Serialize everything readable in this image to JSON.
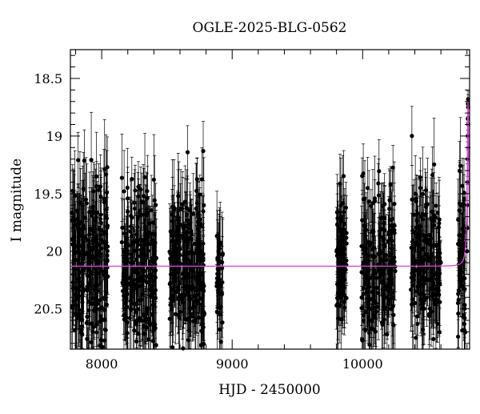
{
  "chart_data": {
    "type": "scatter",
    "title": "OGLE-2025-BLG-0562",
    "xlabel": "HJD - 2450000",
    "ylabel": "I magnitude",
    "xlim": [
      7760,
      10820
    ],
    "ylim": [
      20.85,
      18.25
    ],
    "y_inverted": true,
    "grid": false,
    "legend": "none",
    "x_ticks": [
      8000,
      9000,
      10000
    ],
    "x_tick_labels": [
      "8000",
      "9000",
      "10000"
    ],
    "y_ticks": [
      18.5,
      19,
      19.5,
      20,
      20.5
    ],
    "y_tick_labels": [
      "18.5",
      "19",
      "19.5",
      "20",
      "20.5"
    ],
    "colors": {
      "points": "#000000",
      "model": "#e040e0"
    },
    "series": [
      {
        "kind": "points",
        "seasons": [
          {
            "x_range": [
              7770,
              8050
            ],
            "mean_mag": 20.13,
            "scatter": 0.38,
            "err": 0.3,
            "count": 260
          },
          {
            "x_range": [
              8150,
              8420
            ],
            "mean_mag": 20.13,
            "scatter": 0.36,
            "err": 0.28,
            "count": 240
          },
          {
            "x_range": [
              8520,
              8790
            ],
            "mean_mag": 20.13,
            "scatter": 0.36,
            "err": 0.28,
            "count": 250
          },
          {
            "x_range": [
              8880,
              8930
            ],
            "mean_mag": 20.13,
            "scatter": 0.32,
            "err": 0.3,
            "count": 40
          },
          {
            "x_range": [
              9800,
              9880
            ],
            "mean_mag": 20.13,
            "scatter": 0.32,
            "err": 0.28,
            "count": 70
          },
          {
            "x_range": [
              9990,
              10250
            ],
            "mean_mag": 20.13,
            "scatter": 0.34,
            "err": 0.28,
            "count": 200
          },
          {
            "x_range": [
              10370,
              10600
            ],
            "mean_mag": 20.13,
            "scatter": 0.34,
            "err": 0.28,
            "count": 180
          },
          {
            "x_range": [
              10730,
              10790
            ],
            "mean_mag": 20.13,
            "scatter": 0.34,
            "err": 0.28,
            "count": 60
          }
        ],
        "peak_points": [
          {
            "x": 10800,
            "y": 20.0,
            "err": 0.2
          },
          {
            "x": 10801,
            "y": 19.8,
            "err": 0.2
          },
          {
            "x": 10802,
            "y": 19.6,
            "err": 0.18
          },
          {
            "x": 10803,
            "y": 19.4,
            "err": 0.16
          },
          {
            "x": 10804,
            "y": 19.2,
            "err": 0.15
          },
          {
            "x": 10805,
            "y": 19.0,
            "err": 0.12
          },
          {
            "x": 10806,
            "y": 18.85,
            "err": 0.1
          },
          {
            "x": 10807,
            "y": 18.72,
            "err": 0.08
          },
          {
            "x": 10808,
            "y": 18.68,
            "err": 0.07
          },
          {
            "x": 10809,
            "y": 18.75,
            "err": 0.08
          },
          {
            "x": 10810,
            "y": 18.9,
            "err": 0.1
          },
          {
            "x": 10811,
            "y": 19.1,
            "err": 0.12
          }
        ]
      },
      {
        "kind": "model",
        "baseline_mag": 20.13,
        "t0": 10808,
        "peak_mag": 18.68,
        "tE_days": 5
      }
    ]
  }
}
